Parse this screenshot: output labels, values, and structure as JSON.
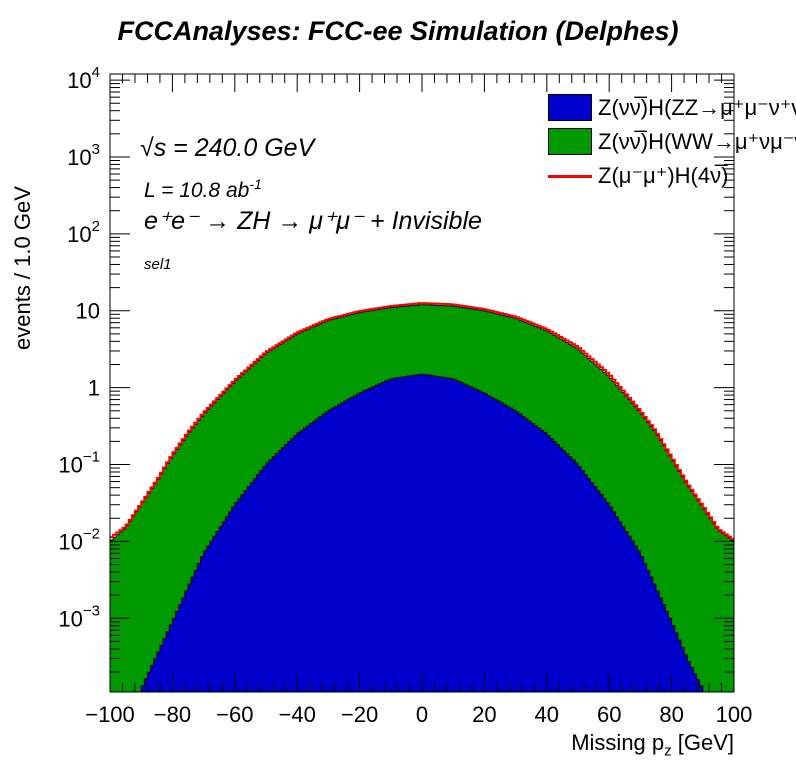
{
  "chart_data": {
    "type": "histogram-stacked-log",
    "title": "FCCAnalyses: FCC-ee Simulation (Delphes)",
    "xlabel": "Missing p_z [GeV]",
    "ylabel": "events / 1.0 GeV",
    "xlim": [
      -100,
      100
    ],
    "ylim": [
      0.00011,
      12000
    ],
    "yscale": "log",
    "x_ticks": [
      "−100",
      "−80",
      "−60",
      "−40",
      "−20",
      "0",
      "20",
      "40",
      "60",
      "80",
      "100"
    ],
    "y_ticks": [
      {
        "base": "10",
        "exp": "4",
        "value": 10000
      },
      {
        "base": "10",
        "exp": "3",
        "value": 1000
      },
      {
        "base": "10",
        "exp": "2",
        "value": 100
      },
      {
        "base": "10",
        "exp": "",
        "value": 10
      },
      {
        "base": "1",
        "exp": "",
        "value": 1
      },
      {
        "base": "10",
        "exp": "−1",
        "value": 0.1
      },
      {
        "base": "10",
        "exp": "−2",
        "value": 0.01
      },
      {
        "base": "10",
        "exp": "−3",
        "value": 0.001
      }
    ],
    "grid": false,
    "legend_position": "top-right",
    "series": [
      {
        "name": "Z(νν̅)H(ZZ→μ⁺μ⁻ν⁺ν⁻)",
        "color": "#0000cc",
        "style": "filled",
        "x": [
          -90,
          -80,
          -70,
          -60,
          -50,
          -40,
          -30,
          -20,
          -10,
          0,
          10,
          20,
          30,
          40,
          50,
          60,
          70,
          80,
          85,
          90
        ],
        "y": [
          0.00012,
          0.0009,
          0.007,
          0.03,
          0.1,
          0.25,
          0.5,
          0.85,
          1.3,
          1.5,
          1.3,
          0.85,
          0.5,
          0.25,
          0.1,
          0.03,
          0.007,
          0.0009,
          0.0003,
          0.00012
        ]
      },
      {
        "name": "Z(νν̅)H(WW→μ⁺νμ⁻ν)",
        "color": "#009900",
        "style": "filled-stacked",
        "x": [
          -100,
          -95,
          -90,
          -85,
          -80,
          -75,
          -70,
          -60,
          -50,
          -40,
          -30,
          -20,
          -10,
          0,
          10,
          20,
          30,
          40,
          50,
          60,
          70,
          75,
          80,
          85,
          90,
          95,
          100
        ],
        "y": [
          0.01,
          0.015,
          0.03,
          0.06,
          0.13,
          0.25,
          0.45,
          1.2,
          2.8,
          5.0,
          7.5,
          9.5,
          11.0,
          12.0,
          11.5,
          10.0,
          8.0,
          5.5,
          3.2,
          1.4,
          0.48,
          0.26,
          0.12,
          0.055,
          0.028,
          0.014,
          0.01
        ]
      },
      {
        "name": "Z(μ⁻μ⁺)H(4ν̅)",
        "color": "#ff0000",
        "style": "line",
        "x": [
          -100,
          -95,
          -90,
          -85,
          -80,
          -75,
          -70,
          -60,
          -50,
          -40,
          -30,
          -20,
          -10,
          0,
          10,
          20,
          30,
          40,
          50,
          60,
          70,
          75,
          80,
          85,
          90,
          95,
          100
        ],
        "y": [
          0.011,
          0.0155,
          0.031,
          0.062,
          0.135,
          0.26,
          0.47,
          1.25,
          2.9,
          5.2,
          7.8,
          9.9,
          11.5,
          12.6,
          12.1,
          10.5,
          8.4,
          5.8,
          3.4,
          1.5,
          0.5,
          0.27,
          0.125,
          0.057,
          0.029,
          0.0145,
          0.0105
        ]
      }
    ],
    "annotations": {
      "sqrt_s": "s = 240.0 GeV",
      "lumi_base": "L = 10.8 ab",
      "lumi_exp": "-1",
      "process": "e⁺e⁻ → ZH → μ⁺μ⁻ + Invisible",
      "selection": "sel1"
    }
  },
  "legend": {
    "items": [
      {
        "label": "Z(νν̅)H(ZZ→μ⁺μ⁻ν⁺ν⁻)",
        "color": "#0000cc",
        "style": "box"
      },
      {
        "label": "Z(νν̅)H(WW→μ⁺νμ⁻ν)",
        "color": "#009900",
        "style": "box"
      },
      {
        "label": "Z(μ⁻μ⁺)H(4ν̅)",
        "color": "#ff0000",
        "style": "line"
      }
    ]
  }
}
